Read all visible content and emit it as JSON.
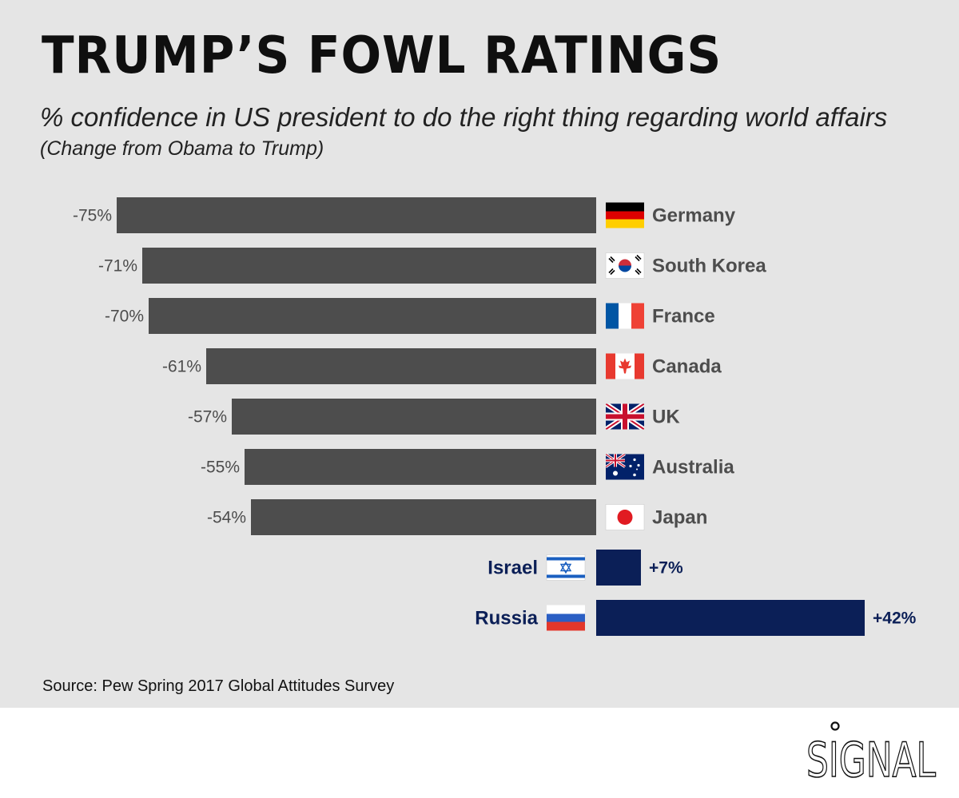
{
  "title": "TRUMP’S FOWL RATINGS",
  "subtitle": "% confidence in US president to do the right thing regarding world affairs",
  "subtitle2": "(Change from Obama to Trump)",
  "source": "Source: Pew Spring 2017 Global Attitudes Survey",
  "brand": "SIGNAL",
  "colors": {
    "negative": "#4d4d4d",
    "positive": "#0b1f57",
    "panel": "#e5e5e5"
  },
  "chart_data": {
    "type": "bar",
    "orientation": "horizontal",
    "title": "TRUMP’S FOWL RATINGS",
    "subtitle": "% confidence in US president to do the right thing regarding world affairs (Change from Obama to Trump)",
    "xlabel": "",
    "ylabel": "",
    "unit": "%",
    "xlim": [
      -75,
      42
    ],
    "grid": false,
    "categories": [
      "Germany",
      "South Korea",
      "France",
      "Canada",
      "UK",
      "Australia",
      "Japan",
      "Israel",
      "Russia"
    ],
    "values": [
      -75,
      -71,
      -70,
      -61,
      -57,
      -55,
      -54,
      7,
      42
    ],
    "labels": [
      "-75%",
      "-71%",
      "-70%",
      "-61%",
      "-57%",
      "-55%",
      "-54%",
      "+7%",
      "+42%"
    ],
    "flags": [
      "germany-flag-icon",
      "south-korea-flag-icon",
      "france-flag-icon",
      "canada-flag-icon",
      "uk-flag-icon",
      "australia-flag-icon",
      "japan-flag-icon",
      "israel-flag-icon",
      "russia-flag-icon"
    ]
  }
}
